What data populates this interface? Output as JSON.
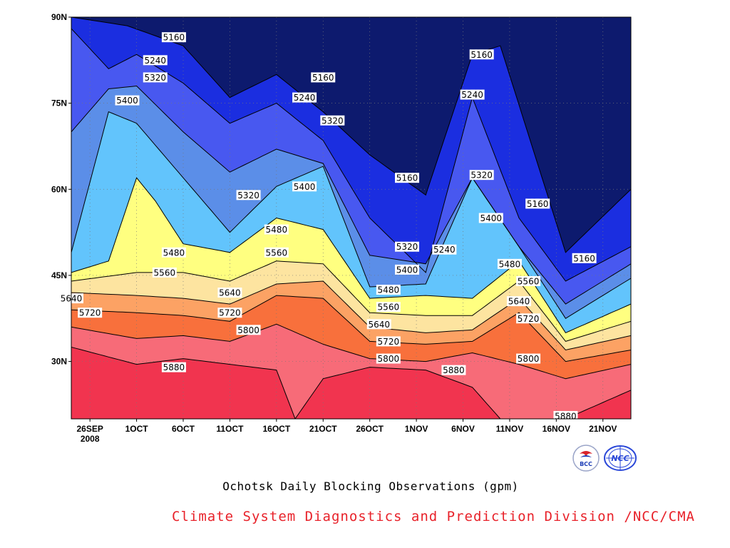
{
  "chart_data": {
    "type": "heatmap",
    "subtype": "filled contour (time-latitude Hovmoller)",
    "title": "Ochotsk Daily Blocking Observations (gpm)",
    "credit": "Climate System Diagnostics and Prediction Division /NCC/CMA",
    "x_tick_labels": [
      "26SEP",
      "1OCT",
      "6OCT",
      "11OCT",
      "16OCT",
      "21OCT",
      "26OCT",
      "1NOV",
      "6NOV",
      "11NOV",
      "16NOV",
      "21NOV"
    ],
    "x_year_label": "2008",
    "x_range": [
      "2008-09-24",
      "2008-11-23"
    ],
    "y_tick_labels": [
      "30N",
      "45N",
      "60N",
      "75N",
      "90N"
    ],
    "y_values": [
      30,
      45,
      60,
      75,
      90
    ],
    "ylim": [
      20,
      90
    ],
    "contour_levels": [
      5160,
      5240,
      5320,
      5400,
      5480,
      5560,
      5640,
      5720,
      5800,
      5880
    ],
    "band_colors": [
      "#0d1a6e",
      "#1b2ee0",
      "#4858f0",
      "#5b8ee8",
      "#62c4fc",
      "#ffff80",
      "#fde4a0",
      "#fca264",
      "#f8703c",
      "#f76b78",
      "#f1344f"
    ],
    "contours": [
      {
        "value": 5880,
        "x": [
          "2008-09-24",
          "2008-10-01",
          "2008-10-06",
          "2008-10-11",
          "2008-10-16",
          "2008-10-18",
          "2008-10-21",
          "2008-10-26",
          "2008-11-01",
          "2008-11-06",
          "2008-11-09",
          "2008-11-16",
          "2008-11-23"
        ],
        "y": [
          32.5,
          29.5,
          30.5,
          29.5,
          28.5,
          20,
          27,
          29,
          28.5,
          25.5,
          20,
          20,
          25
        ]
      },
      {
        "value": 5800,
        "x": [
          "2008-09-24",
          "2008-10-01",
          "2008-10-06",
          "2008-10-11",
          "2008-10-16",
          "2008-10-21",
          "2008-10-26",
          "2008-11-01",
          "2008-11-06",
          "2008-11-11",
          "2008-11-16",
          "2008-11-23"
        ],
        "y": [
          36,
          34,
          34.5,
          33.5,
          36.5,
          33,
          30.5,
          30,
          31.5,
          29.5,
          27,
          29.5
        ]
      },
      {
        "value": 5720,
        "x": [
          "2008-09-24",
          "2008-10-01",
          "2008-10-06",
          "2008-10-11",
          "2008-10-16",
          "2008-10-21",
          "2008-10-26",
          "2008-11-01",
          "2008-11-06",
          "2008-11-11",
          "2008-11-16",
          "2008-11-23"
        ],
        "y": [
          39,
          38.5,
          38,
          37,
          41.5,
          41,
          33.5,
          33,
          33.5,
          38.5,
          30,
          32
        ]
      },
      {
        "value": 5640,
        "x": [
          "2008-09-24",
          "2008-10-01",
          "2008-10-06",
          "2008-10-11",
          "2008-10-16",
          "2008-10-21",
          "2008-10-26",
          "2008-11-01",
          "2008-11-06",
          "2008-11-11",
          "2008-11-16",
          "2008-11-23"
        ],
        "y": [
          42,
          41.5,
          41,
          40,
          43.5,
          44,
          36,
          35,
          35.5,
          41,
          32,
          34.5
        ]
      },
      {
        "value": 5560,
        "x": [
          "2008-09-24",
          "2008-10-01",
          "2008-10-06",
          "2008-10-11",
          "2008-10-16",
          "2008-10-21",
          "2008-10-26",
          "2008-11-01",
          "2008-11-06",
          "2008-11-11",
          "2008-11-16",
          "2008-11-23"
        ],
        "y": [
          44,
          45.5,
          45.5,
          44,
          47.5,
          47,
          38.5,
          38,
          38,
          44,
          33.5,
          37
        ]
      },
      {
        "value": 5480,
        "x": [
          "2008-09-24",
          "2008-09-28",
          "2008-10-01",
          "2008-10-03",
          "2008-10-06",
          "2008-10-11",
          "2008-10-16",
          "2008-10-21",
          "2008-10-26",
          "2008-11-01",
          "2008-11-06",
          "2008-11-11",
          "2008-11-16",
          "2008-11-23"
        ],
        "y": [
          45.5,
          47.5,
          62,
          58,
          50.5,
          49,
          55,
          53,
          41,
          41.5,
          41,
          47.5,
          35,
          40
        ]
      },
      {
        "value": 5400,
        "x": [
          "2008-09-24",
          "2008-09-28",
          "2008-10-01",
          "2008-10-06",
          "2008-10-11",
          "2008-10-16",
          "2008-10-21",
          "2008-10-26",
          "2008-11-01",
          "2008-11-06",
          "2008-11-11",
          "2008-11-16",
          "2008-11-23"
        ],
        "y": [
          49,
          73.5,
          71.5,
          62,
          52.5,
          60.5,
          64,
          43,
          43.5,
          62,
          50,
          37.5,
          44.5
        ]
      },
      {
        "value": 5320,
        "x": [
          "2008-09-24",
          "2008-09-28",
          "2008-10-01",
          "2008-10-06",
          "2008-10-11",
          "2008-10-16",
          "2008-10-21",
          "2008-10-26",
          "2008-11-01",
          "2008-11-06",
          "2008-11-11",
          "2008-11-16",
          "2008-11-23"
        ],
        "y": [
          70,
          77.5,
          78,
          70,
          63,
          67,
          64.5,
          48.5,
          47,
          62,
          50,
          40,
          47
        ]
      },
      {
        "value": 5240,
        "x": [
          "2008-09-24",
          "2008-09-28",
          "2008-10-01",
          "2008-10-06",
          "2008-10-11",
          "2008-10-16",
          "2008-10-21",
          "2008-10-26",
          "2008-11-01",
          "2008-11-06",
          "2008-11-11",
          "2008-11-16",
          "2008-11-23"
        ],
        "y": [
          88,
          81,
          83.5,
          78.5,
          71.5,
          75,
          68.5,
          55,
          45.5,
          76,
          55,
          44,
          50
        ]
      },
      {
        "value": 5160,
        "x": [
          "2008-09-24",
          "2008-09-30",
          "2008-10-06",
          "2008-10-11",
          "2008-10-16",
          "2008-10-21",
          "2008-10-26",
          "2008-11-01",
          "2008-11-06",
          "2008-11-09",
          "2008-11-16",
          "2008-11-23"
        ],
        "y": [
          90,
          88.5,
          85,
          76,
          80,
          73.5,
          66,
          59,
          83.5,
          85,
          49,
          60
        ]
      }
    ],
    "contour_labels": [
      {
        "text": "5160",
        "x": "2008-10-05",
        "y": 86.5
      },
      {
        "text": "5240",
        "x": "2008-10-03",
        "y": 82.5
      },
      {
        "text": "5320",
        "x": "2008-10-03",
        "y": 79.5
      },
      {
        "text": "5400",
        "x": "2008-09-30",
        "y": 75.5
      },
      {
        "text": "5160",
        "x": "2008-10-21",
        "y": 79.5
      },
      {
        "text": "5240",
        "x": "2008-10-19",
        "y": 76
      },
      {
        "text": "5320",
        "x": "2008-10-22",
        "y": 72
      },
      {
        "text": "5400",
        "x": "2008-10-19",
        "y": 60.5
      },
      {
        "text": "5320",
        "x": "2008-10-13",
        "y": 59
      },
      {
        "text": "5480",
        "x": "2008-10-16",
        "y": 53
      },
      {
        "text": "5480",
        "x": "2008-10-05",
        "y": 49
      },
      {
        "text": "5560",
        "x": "2008-10-16",
        "y": 49
      },
      {
        "text": "5560",
        "x": "2008-10-04",
        "y": 45.5
      },
      {
        "text": "5640",
        "x": "2008-10-11",
        "y": 42
      },
      {
        "text": "5720",
        "x": "2008-10-11",
        "y": 38.5
      },
      {
        "text": "5800",
        "x": "2008-10-13",
        "y": 35.5
      },
      {
        "text": "5880",
        "x": "2008-10-05",
        "y": 29
      },
      {
        "text": "5640",
        "x": "2008-09-24",
        "y": 41
      },
      {
        "text": "5720",
        "x": "2008-09-26",
        "y": 38.5
      },
      {
        "text": "5160",
        "x": "2008-10-30",
        "y": 62
      },
      {
        "text": "5320",
        "x": "2008-10-30",
        "y": 50
      },
      {
        "text": "5400",
        "x": "2008-10-30",
        "y": 46
      },
      {
        "text": "5480",
        "x": "2008-10-28",
        "y": 42.5
      },
      {
        "text": "5560",
        "x": "2008-10-28",
        "y": 39.5
      },
      {
        "text": "5640",
        "x": "2008-10-27",
        "y": 36.5
      },
      {
        "text": "5720",
        "x": "2008-10-28",
        "y": 33.5
      },
      {
        "text": "5800",
        "x": "2008-10-28",
        "y": 30.5
      },
      {
        "text": "5240",
        "x": "2008-11-03",
        "y": 49.5
      },
      {
        "text": "5880",
        "x": "2008-11-04",
        "y": 28.5
      },
      {
        "text": "5160",
        "x": "2008-11-07",
        "y": 83.5
      },
      {
        "text": "5240",
        "x": "2008-11-06",
        "y": 76.5
      },
      {
        "text": "5320",
        "x": "2008-11-07",
        "y": 62.5
      },
      {
        "text": "5400",
        "x": "2008-11-08",
        "y": 55
      },
      {
        "text": "5480",
        "x": "2008-11-10",
        "y": 47
      },
      {
        "text": "5560",
        "x": "2008-11-12",
        "y": 44
      },
      {
        "text": "5640",
        "x": "2008-11-11",
        "y": 40.5
      },
      {
        "text": "5720",
        "x": "2008-11-12",
        "y": 37.5
      },
      {
        "text": "5800",
        "x": "2008-11-12",
        "y": 30.5
      },
      {
        "text": "5160",
        "x": "2008-11-13",
        "y": 57.5
      },
      {
        "text": "5160",
        "x": "2008-11-18",
        "y": 48
      },
      {
        "text": "5880",
        "x": "2008-11-16",
        "y": 20.5
      }
    ],
    "grid": true
  },
  "logos": [
    {
      "name": "BCC",
      "text": "BCC",
      "color": "#1a3bb5"
    },
    {
      "name": "NCC",
      "text": "NCC",
      "color": "#2b48d8"
    }
  ]
}
